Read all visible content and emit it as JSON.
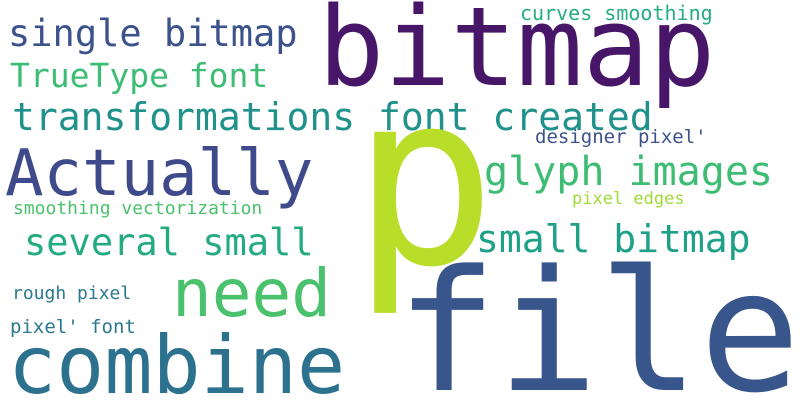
{
  "words": [
    {
      "text": "bitmap",
      "color": "#481668"
    },
    {
      "text": "p",
      "color": "#b8de29"
    },
    {
      "text": "file",
      "color": "#39568c"
    },
    {
      "text": "combine",
      "color": "#2c718e"
    },
    {
      "text": "Actually",
      "color": "#3e4a89"
    },
    {
      "text": "need",
      "color": "#4ac16d"
    },
    {
      "text": "single bitmap",
      "color": "#3b528b"
    },
    {
      "text": "TrueType font",
      "color": "#3dbc74"
    },
    {
      "text": "transformations font created",
      "color": "#21918c"
    },
    {
      "text": "glyph images",
      "color": "#3dbc74"
    },
    {
      "text": "several small",
      "color": "#25ab82"
    },
    {
      "text": "small bitmap",
      "color": "#1fa088"
    },
    {
      "text": "curves smoothing",
      "color": "#26ad81"
    },
    {
      "text": "designer pixel'",
      "color": "#3b528b"
    },
    {
      "text": "smoothing vectorization",
      "color": "#4ac16d"
    },
    {
      "text": "pixel edges",
      "color": "#a0da39"
    },
    {
      "text": "rough pixel",
      "color": "#2a788e"
    },
    {
      "text": "pixel' font",
      "color": "#2a788e"
    }
  ]
}
